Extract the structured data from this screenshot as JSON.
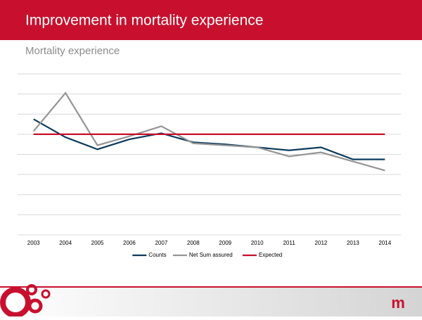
{
  "header": {
    "title": "Improvement in mortality experience"
  },
  "chart_data": {
    "type": "line",
    "title": "Mortality experience",
    "categories": [
      "2003",
      "2004",
      "2005",
      "2006",
      "2007",
      "2008",
      "2009",
      "2010",
      "2011",
      "2012",
      "2013",
      "2014"
    ],
    "series": [
      {
        "name": "Counts",
        "color": "#0d3a5c",
        "values": [
          115,
          97,
          85,
          95,
          101,
          92,
          90,
          87,
          84,
          87,
          75,
          75
        ]
      },
      {
        "name": "Net Sum assured",
        "color": "#959595",
        "values": [
          103,
          141,
          89,
          98,
          108,
          91,
          89,
          87,
          78,
          82,
          73,
          64
        ]
      },
      {
        "name": "Expected",
        "color": "#c8102e",
        "values": [
          100,
          100,
          100,
          100,
          100,
          100,
          100,
          100,
          100,
          100,
          100,
          100
        ]
      }
    ],
    "ylim": [
      0,
      160
    ],
    "ygrid": [
      0,
      20,
      40,
      60,
      80,
      100,
      120,
      140,
      160
    ],
    "grid": true,
    "legend": "bottom"
  }
}
